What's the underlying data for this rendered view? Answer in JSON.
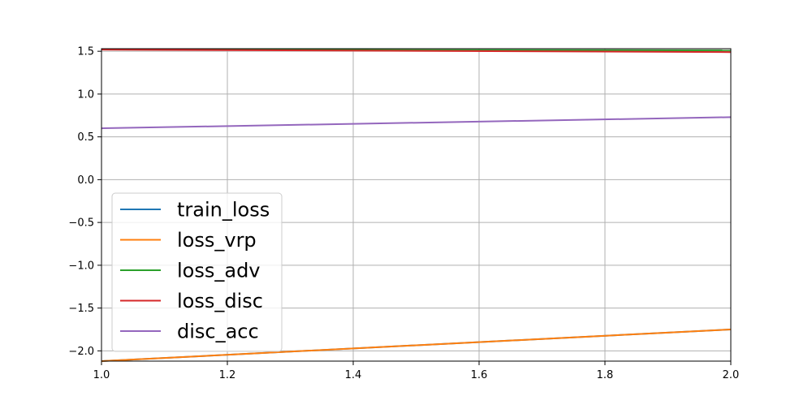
{
  "chart_data": {
    "type": "line",
    "title": "",
    "xlabel": "",
    "ylabel": "",
    "xlim": [
      1.0,
      2.0
    ],
    "ylim": [
      -2.12,
      1.53
    ],
    "grid": true,
    "legend_position": "lower-left",
    "x_ticks": [
      "1.0",
      "1.2",
      "1.4",
      "1.6",
      "1.8",
      "2.0"
    ],
    "x_tick_values": [
      1.0,
      1.2,
      1.4,
      1.6,
      1.8,
      2.0
    ],
    "y_ticks": [
      "1.5",
      "1.0",
      "0.5",
      "0.0",
      "−0.5",
      "−1.0",
      "−1.5",
      "−2.0"
    ],
    "y_tick_values": [
      1.5,
      1.0,
      0.5,
      0.0,
      -0.5,
      -1.0,
      -1.5,
      -2.0
    ],
    "x": [
      1,
      2
    ],
    "series": [
      {
        "name": "train_loss",
        "color": "#1f77b4",
        "values": [
          -2.12,
          -1.75
        ]
      },
      {
        "name": "loss_vrp",
        "color": "#ff7f0e",
        "values": [
          -2.12,
          -1.75
        ]
      },
      {
        "name": "loss_adv",
        "color": "#2ca02c",
        "values": [
          1.52,
          1.51
        ]
      },
      {
        "name": "loss_disc",
        "color": "#d62728",
        "values": [
          1.52,
          1.49
        ]
      },
      {
        "name": "disc_acc",
        "color": "#9467bd",
        "values": [
          0.6,
          0.73
        ]
      }
    ]
  }
}
